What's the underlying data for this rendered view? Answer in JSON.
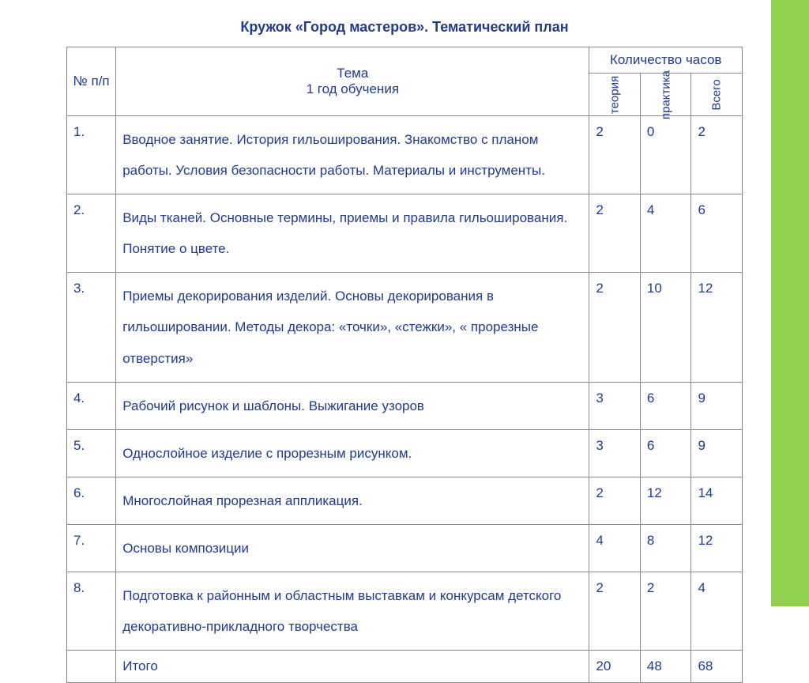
{
  "title": "Кружок  «Город  мастеров». Тематический план",
  "colors": {
    "text": "#1f3b8e",
    "border": "#8a8a8a",
    "accent_bar": "#92d050",
    "background": "#ffffff"
  },
  "columns": {
    "num": "№ п/п",
    "topic_line1": "Тема",
    "topic_line2": "1 год обучения",
    "hours_header": "Количество часов",
    "theory": "теория",
    "practice": "практика",
    "total": "Всего"
  },
  "rows": [
    {
      "num": "1.",
      "topic": "Вводное занятие.   История гильоширования.   Знакомство с планом работы. Условия безопасности работы. Материалы и инструменты.",
      "theory": "2",
      "practice": "0",
      "total": "2"
    },
    {
      "num": "2.",
      "topic": "Виды тканей. Основные термины, приемы и правила гильоширования. Понятие о цвете.",
      "theory": "2",
      "practice": "4",
      "total": "6"
    },
    {
      "num": "3.",
      "topic": "Приемы декорирования изделий. Основы декорирования в гильошировании.  Методы декора:  «точки», «стежки», « прорезные отверстия»",
      "theory": "2",
      "practice": "10",
      "total": "12"
    },
    {
      "num": "4.",
      "topic": "Рабочий рисунок и шаблоны. Выжигание узоров",
      "theory": "3",
      "practice": "6",
      "total": "9"
    },
    {
      "num": "5.",
      "topic": "Однослойное изделие с  прорезным рисунком.",
      "theory": "3",
      "practice": "6",
      "total": "9"
    },
    {
      "num": "6.",
      "topic": "Многослойная прорезная аппликация.",
      "theory": "2",
      "practice": "12",
      "total": "14"
    },
    {
      "num": "7.",
      "topic": "Основы композиции",
      "theory": "4",
      "practice": "8",
      "total": "12"
    },
    {
      "num": "8.",
      "topic": " Подготовка к районным и областным выставкам и конкурсам детского декоративно-прикладного творчества",
      "theory": "2",
      "practice": "2",
      "total": "4"
    }
  ],
  "footer": {
    "num": "",
    "topic": "Итого",
    "theory": "20",
    "practice": "48",
    "total": "68"
  }
}
